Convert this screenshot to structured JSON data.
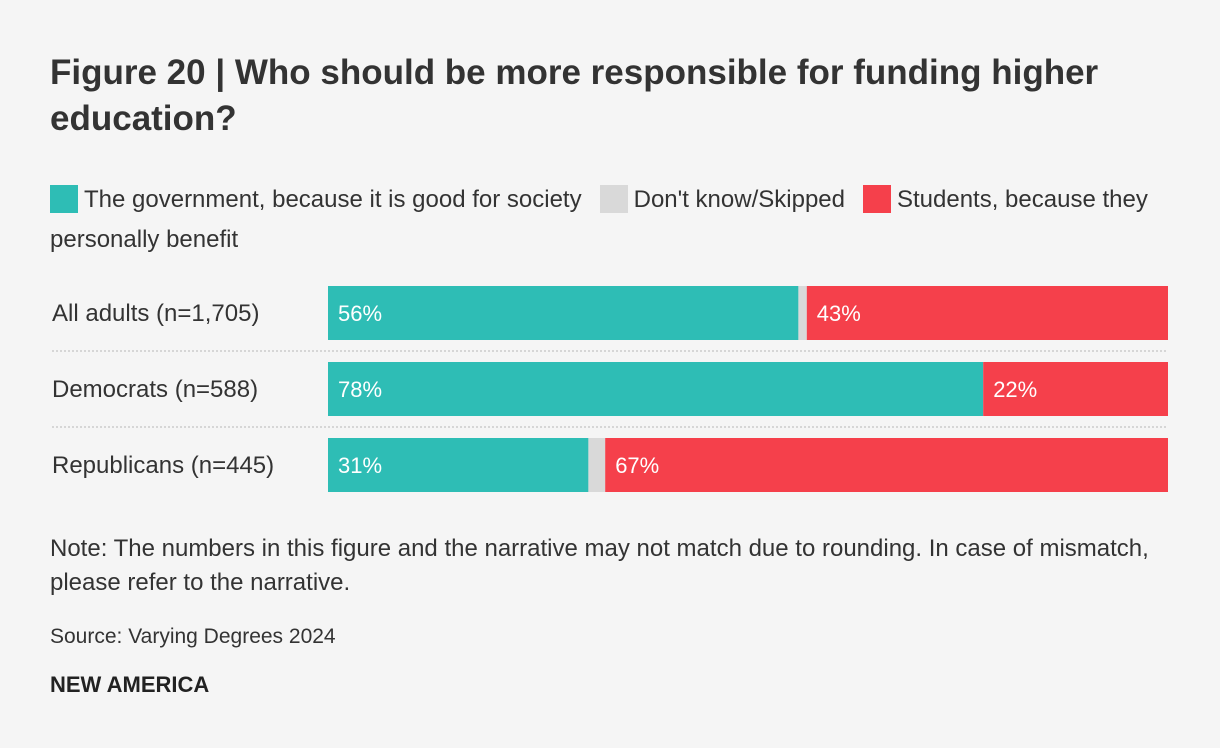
{
  "chart_data": {
    "type": "bar",
    "orientation": "horizontal",
    "stacked": true,
    "title": "Figure 20 | Who should be more responsible for funding higher education?",
    "categories": [
      "All adults (n=1,705)",
      "Democrats (n=588)",
      "Republicans (n=445)"
    ],
    "series": [
      {
        "name": "The government, because it is good for society",
        "color": "#2ebdb5",
        "values": [
          56,
          78,
          31
        ],
        "labels": [
          "56%",
          "78%",
          "31%"
        ]
      },
      {
        "name": "Don't know/Skipped",
        "color": "#d9d9d9",
        "values": [
          1,
          0,
          2
        ],
        "labels": [
          "",
          "",
          ""
        ]
      },
      {
        "name": "Students, because they personally benefit",
        "color": "#f5404b",
        "values": [
          43,
          22,
          67
        ],
        "labels": [
          "43%",
          "22%",
          "67%"
        ]
      }
    ],
    "xlim": [
      0,
      100
    ],
    "legend_position": "top",
    "grid": false
  },
  "note": "Note: The numbers in this figure and the narrative may not match due to rounding. In case of mismatch, please refer to the narrative.",
  "source": "Source: Varying Degrees 2024",
  "brand": "NEW AMERICA",
  "colors": {
    "background": "#f5f5f5",
    "text": "#333333",
    "separator": "#cccccc"
  }
}
